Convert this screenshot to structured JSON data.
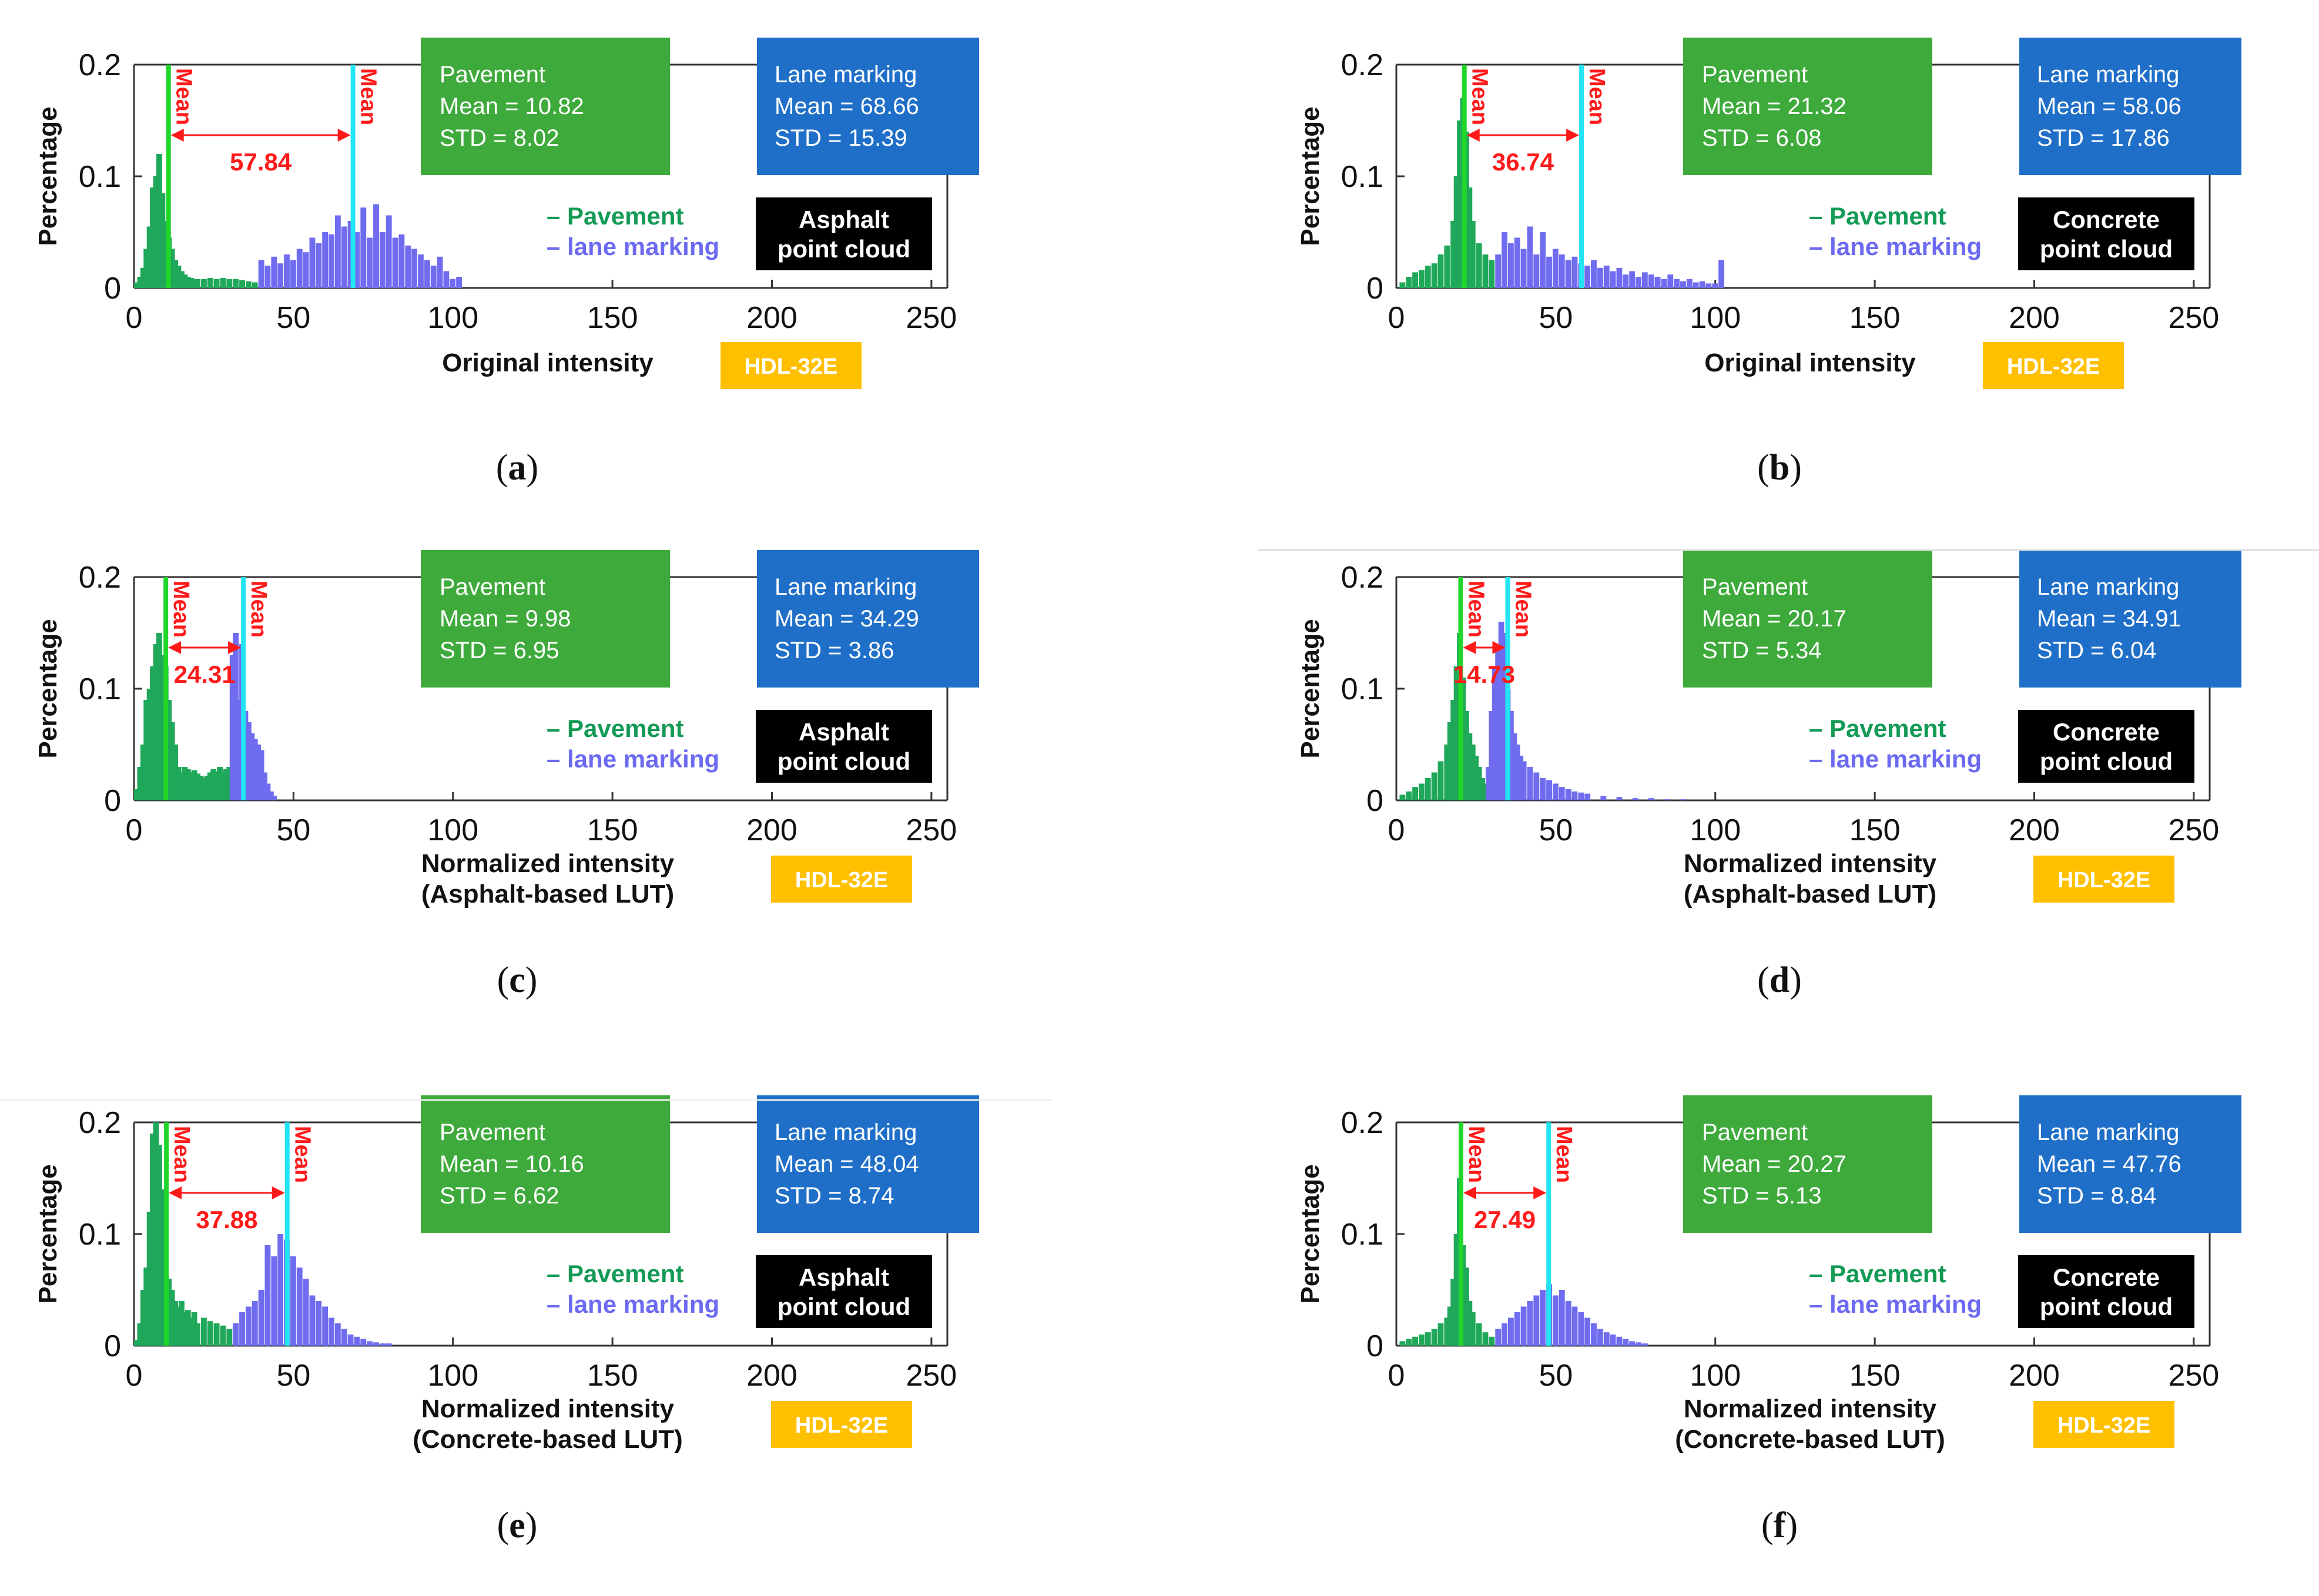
{
  "colors": {
    "pavement_fill": "#1fa85a",
    "pavement_box": "#3faa3c",
    "lane_fill": "#6f6cf0",
    "lane_box": "#1f6fc8",
    "pavement_mean_line": "#21d62a",
    "lane_mean_line": "#22e4f2",
    "mean_text": "#ff1a1a",
    "hdl_box": "#ffc000",
    "cloud_box": "#000000",
    "legend_pavement": "#139a55",
    "legend_lane": "#6c6af0"
  },
  "chart_data": [
    {
      "type": "bar",
      "panel": "(a)",
      "caption_letter": "a",
      "xlabel": [
        "Original intensity"
      ],
      "ylabel": "Percentage",
      "xlim": [
        0,
        255
      ],
      "ylim": [
        0,
        0.2
      ],
      "xticks": [
        "0",
        "50",
        "100",
        "150",
        "200",
        "250"
      ],
      "yticks": [
        "0",
        "0.1",
        "0.2"
      ],
      "mean_label": "Mean",
      "difference": "57.84",
      "pavement_box": {
        "title": "Pavement",
        "mean": "Mean = 10.82",
        "std": "STD = 8.02"
      },
      "lane_box": {
        "title": "Lane marking",
        "mean": "Mean = 68.66",
        "std": "STD = 15.39"
      },
      "legend": {
        "pavement": "– Pavement",
        "lane": "– lane marking"
      },
      "cloud_label": [
        "Asphalt",
        "point cloud"
      ],
      "sensor": "HDL-32E",
      "pavement_mean": 10.82,
      "lane_mean": 68.66,
      "series": [
        {
          "name": "Pavement",
          "x": [
            1,
            2,
            3,
            4,
            5,
            6,
            7,
            8,
            9,
            10,
            11,
            12,
            13,
            14,
            15,
            16,
            17,
            18,
            19,
            20,
            22,
            24,
            26,
            28,
            30,
            32,
            34,
            36,
            38
          ],
          "values": [
            0.005,
            0.01,
            0.018,
            0.035,
            0.055,
            0.09,
            0.1,
            0.12,
            0.085,
            0.06,
            0.045,
            0.035,
            0.025,
            0.02,
            0.015,
            0.012,
            0.01,
            0.009,
            0.008,
            0.008,
            0.008,
            0.009,
            0.008,
            0.009,
            0.008,
            0.008,
            0.007,
            0.006,
            0.005
          ]
        },
        {
          "name": "lane marking",
          "x": [
            40,
            42,
            44,
            46,
            48,
            50,
            52,
            54,
            56,
            58,
            60,
            62,
            64,
            66,
            68,
            70,
            72,
            74,
            76,
            78,
            80,
            82,
            84,
            86,
            88,
            90,
            92,
            94,
            96,
            98,
            100,
            102
          ],
          "values": [
            0.025,
            0.02,
            0.028,
            0.022,
            0.03,
            0.025,
            0.035,
            0.032,
            0.045,
            0.04,
            0.05,
            0.048,
            0.065,
            0.055,
            0.06,
            0.05,
            0.072,
            0.045,
            0.075,
            0.05,
            0.065,
            0.045,
            0.048,
            0.038,
            0.035,
            0.03,
            0.025,
            0.02,
            0.028,
            0.015,
            0.008,
            0.01
          ]
        }
      ]
    },
    {
      "type": "bar",
      "panel": "(b)",
      "caption_letter": "b",
      "xlabel": [
        "Original intensity"
      ],
      "ylabel": "Percentage",
      "xlim": [
        0,
        255
      ],
      "ylim": [
        0,
        0.2
      ],
      "xticks": [
        "0",
        "50",
        "100",
        "150",
        "200",
        "250"
      ],
      "yticks": [
        "0",
        "0.1",
        "0.2"
      ],
      "mean_label": "Mean",
      "difference": "36.74",
      "pavement_box": {
        "title": "Pavement",
        "mean": "Mean = 21.32",
        "std": "STD = 6.08"
      },
      "lane_box": {
        "title": "Lane marking",
        "mean": "Mean = 58.06",
        "std": "STD = 17.86"
      },
      "legend": {
        "pavement": "– Pavement",
        "lane": "– lane marking"
      },
      "cloud_label": [
        "Concrete",
        "point cloud"
      ],
      "sensor": "HDL-32E",
      "pavement_mean": 21.32,
      "lane_mean": 58.06,
      "series": [
        {
          "name": "Pavement",
          "x": [
            2,
            4,
            6,
            8,
            10,
            12,
            14,
            16,
            18,
            19,
            20,
            21,
            22,
            23,
            24,
            26,
            28,
            30
          ],
          "values": [
            0.005,
            0.01,
            0.014,
            0.016,
            0.02,
            0.022,
            0.03,
            0.038,
            0.06,
            0.1,
            0.15,
            0.17,
            0.14,
            0.09,
            0.06,
            0.04,
            0.03,
            0.025
          ]
        },
        {
          "name": "lane marking",
          "x": [
            32,
            34,
            36,
            38,
            40,
            42,
            44,
            46,
            48,
            50,
            52,
            54,
            56,
            58,
            60,
            62,
            64,
            66,
            68,
            70,
            72,
            74,
            76,
            78,
            80,
            82,
            84,
            86,
            88,
            90,
            92,
            94,
            96,
            98,
            100,
            102
          ],
          "values": [
            0.03,
            0.05,
            0.04,
            0.045,
            0.035,
            0.055,
            0.03,
            0.05,
            0.028,
            0.035,
            0.03,
            0.025,
            0.028,
            0.022,
            0.02,
            0.025,
            0.018,
            0.02,
            0.015,
            0.018,
            0.012,
            0.015,
            0.01,
            0.014,
            0.012,
            0.01,
            0.008,
            0.012,
            0.008,
            0.006,
            0.008,
            0.005,
            0.006,
            0.004,
            0.004,
            0.025
          ]
        }
      ]
    },
    {
      "type": "bar",
      "panel": "(c)",
      "caption_letter": "c",
      "xlabel": [
        "Normalized intensity",
        "(Asphalt-based LUT)"
      ],
      "ylabel": "Percentage",
      "xlim": [
        0,
        255
      ],
      "ylim": [
        0,
        0.2
      ],
      "xticks": [
        "0",
        "50",
        "100",
        "150",
        "200",
        "250"
      ],
      "yticks": [
        "0",
        "0.1",
        "0.2"
      ],
      "mean_label": "Mean",
      "difference": "24.31",
      "pavement_box": {
        "title": "Pavement",
        "mean": "Mean = 9.98",
        "std": "STD = 6.95"
      },
      "lane_box": {
        "title": "Lane marking",
        "mean": "Mean = 34.29",
        "std": "STD = 3.86"
      },
      "legend": {
        "pavement": "– Pavement",
        "lane": "– lane marking"
      },
      "cloud_label": [
        "Asphalt",
        "point cloud"
      ],
      "sensor": "HDL-32E",
      "pavement_mean": 9.98,
      "lane_mean": 34.29,
      "series": [
        {
          "name": "Pavement",
          "x": [
            1,
            2,
            3,
            4,
            5,
            6,
            7,
            8,
            9,
            10,
            11,
            12,
            13,
            14,
            15,
            16,
            17,
            18,
            19,
            20,
            21,
            22,
            23,
            24,
            25,
            26,
            27,
            28,
            29,
            30
          ],
          "values": [
            0.01,
            0.03,
            0.05,
            0.09,
            0.1,
            0.12,
            0.14,
            0.15,
            0.13,
            0.12,
            0.09,
            0.07,
            0.05,
            0.03,
            0.025,
            0.03,
            0.028,
            0.025,
            0.027,
            0.024,
            0.022,
            0.02,
            0.022,
            0.025,
            0.028,
            0.026,
            0.03,
            0.025,
            0.028,
            0.03
          ]
        },
        {
          "name": "lane marking",
          "x": [
            31,
            32,
            33,
            34,
            35,
            36,
            37,
            38,
            39,
            40,
            41,
            42,
            43,
            44
          ],
          "values": [
            0.13,
            0.15,
            0.09,
            0.14,
            0.08,
            0.07,
            0.06,
            0.055,
            0.05,
            0.045,
            0.025,
            0.015,
            0.008,
            0.004
          ]
        }
      ]
    },
    {
      "type": "bar",
      "panel": "(d)",
      "caption_letter": "d",
      "xlabel": [
        "Normalized intensity",
        "(Asphalt-based LUT)"
      ],
      "ylabel": "Percentage",
      "xlim": [
        0,
        255
      ],
      "ylim": [
        0,
        0.2
      ],
      "xticks": [
        "0",
        "50",
        "100",
        "150",
        "200",
        "250"
      ],
      "yticks": [
        "0",
        "0.1",
        "0.2"
      ],
      "mean_label": "Mean",
      "difference": "14.73",
      "pavement_box": {
        "title": "Pavement",
        "mean": "Mean = 20.17",
        "std": "STD = 5.34"
      },
      "lane_box": {
        "title": "Lane marking",
        "mean": "Mean = 34.91",
        "std": "STD = 6.04"
      },
      "legend": {
        "pavement": "– Pavement",
        "lane": "– lane marking"
      },
      "cloud_label": [
        "Concrete",
        "point cloud"
      ],
      "sensor": "HDL-32E",
      "pavement_mean": 20.17,
      "lane_mean": 34.91,
      "series": [
        {
          "name": "Pavement",
          "x": [
            2,
            4,
            6,
            8,
            10,
            12,
            14,
            16,
            17,
            18,
            19,
            20,
            21,
            22,
            23,
            24,
            25,
            26,
            27,
            28
          ],
          "values": [
            0.005,
            0.008,
            0.012,
            0.015,
            0.02,
            0.025,
            0.035,
            0.05,
            0.07,
            0.09,
            0.12,
            0.15,
            0.11,
            0.08,
            0.06,
            0.05,
            0.04,
            0.03,
            0.02,
            0.015
          ]
        },
        {
          "name": "lane marking",
          "x": [
            29,
            30,
            31,
            32,
            33,
            34,
            35,
            36,
            37,
            38,
            39,
            40,
            42,
            44,
            46,
            48,
            50,
            52,
            54,
            56,
            58,
            60,
            65,
            70,
            75,
            80,
            85,
            90
          ],
          "values": [
            0.03,
            0.08,
            0.12,
            0.14,
            0.16,
            0.15,
            0.1,
            0.08,
            0.06,
            0.05,
            0.04,
            0.035,
            0.03,
            0.025,
            0.02,
            0.018,
            0.015,
            0.012,
            0.01,
            0.008,
            0.007,
            0.006,
            0.004,
            0.003,
            0.002,
            0.002,
            0.001,
            0.001
          ]
        }
      ]
    },
    {
      "type": "bar",
      "panel": "(e)",
      "caption_letter": "e",
      "xlabel": [
        "Normalized intensity",
        "(Concrete-based LUT)"
      ],
      "ylabel": "Percentage",
      "xlim": [
        0,
        255
      ],
      "ylim": [
        0,
        0.2
      ],
      "xticks": [
        "0",
        "50",
        "100",
        "150",
        "200",
        "250"
      ],
      "yticks": [
        "0",
        "0.1",
        "0.2"
      ],
      "mean_label": "Mean",
      "difference": "37.88",
      "pavement_box": {
        "title": "Pavement",
        "mean": "Mean = 10.16",
        "std": "STD = 6.62"
      },
      "lane_box": {
        "title": "Lane marking",
        "mean": "Mean = 48.04",
        "std": "STD = 8.74"
      },
      "legend": {
        "pavement": "– Pavement",
        "lane": "– lane marking"
      },
      "cloud_label": [
        "Asphalt",
        "point cloud"
      ],
      "sensor": "HDL-32E",
      "pavement_mean": 10.16,
      "lane_mean": 48.04,
      "series": [
        {
          "name": "Pavement",
          "x": [
            1,
            2,
            3,
            4,
            5,
            6,
            7,
            8,
            9,
            10,
            11,
            12,
            13,
            14,
            15,
            16,
            17,
            18,
            19,
            20,
            22,
            24,
            26,
            28,
            30
          ],
          "values": [
            0.005,
            0.02,
            0.05,
            0.07,
            0.12,
            0.19,
            0.2,
            0.18,
            0.14,
            0.1,
            0.06,
            0.05,
            0.04,
            0.035,
            0.04,
            0.03,
            0.032,
            0.025,
            0.03,
            0.02,
            0.025,
            0.022,
            0.02,
            0.018,
            0.015
          ]
        },
        {
          "name": "lane marking",
          "x": [
            32,
            34,
            36,
            38,
            40,
            42,
            44,
            46,
            48,
            50,
            52,
            54,
            56,
            58,
            60,
            62,
            64,
            66,
            68,
            70,
            72,
            74,
            76,
            78,
            80
          ],
          "values": [
            0.02,
            0.03,
            0.035,
            0.04,
            0.05,
            0.09,
            0.08,
            0.1,
            0.095,
            0.08,
            0.07,
            0.06,
            0.045,
            0.04,
            0.035,
            0.025,
            0.02,
            0.015,
            0.01,
            0.008,
            0.006,
            0.004,
            0.003,
            0.002,
            0.002
          ]
        }
      ]
    },
    {
      "type": "bar",
      "panel": "(f)",
      "caption_letter": "f",
      "xlabel": [
        "Normalized intensity",
        "(Concrete-based LUT)"
      ],
      "ylabel": "Percentage",
      "xlim": [
        0,
        255
      ],
      "ylim": [
        0,
        0.2
      ],
      "xticks": [
        "0",
        "50",
        "100",
        "150",
        "200",
        "250"
      ],
      "yticks": [
        "0",
        "0.1",
        "0.2"
      ],
      "mean_label": "Mean",
      "difference": "27.49",
      "pavement_box": {
        "title": "Pavement",
        "mean": "Mean = 20.27",
        "std": "STD = 5.13"
      },
      "lane_box": {
        "title": "Lane marking",
        "mean": "Mean = 47.76",
        "std": "STD = 8.84"
      },
      "legend": {
        "pavement": "– Pavement",
        "lane": "– lane marking"
      },
      "cloud_label": [
        "Concrete",
        "point cloud"
      ],
      "sensor": "HDL-32E",
      "pavement_mean": 20.27,
      "lane_mean": 47.76,
      "series": [
        {
          "name": "Pavement",
          "x": [
            2,
            4,
            6,
            8,
            10,
            12,
            14,
            16,
            17,
            18,
            19,
            20,
            21,
            22,
            23,
            24,
            26,
            28,
            30
          ],
          "values": [
            0.004,
            0.006,
            0.008,
            0.01,
            0.012,
            0.015,
            0.02,
            0.025,
            0.035,
            0.06,
            0.1,
            0.15,
            0.09,
            0.07,
            0.04,
            0.03,
            0.02,
            0.012,
            0.008
          ]
        },
        {
          "name": "lane marking",
          "x": [
            32,
            34,
            36,
            38,
            40,
            42,
            44,
            46,
            48,
            50,
            52,
            54,
            56,
            58,
            60,
            62,
            64,
            66,
            68,
            70,
            72,
            74,
            76,
            78
          ],
          "values": [
            0.015,
            0.02,
            0.025,
            0.03,
            0.035,
            0.04,
            0.045,
            0.05,
            0.055,
            0.045,
            0.05,
            0.04,
            0.035,
            0.03,
            0.025,
            0.02,
            0.015,
            0.012,
            0.01,
            0.008,
            0.006,
            0.004,
            0.003,
            0.002
          ]
        }
      ]
    }
  ]
}
